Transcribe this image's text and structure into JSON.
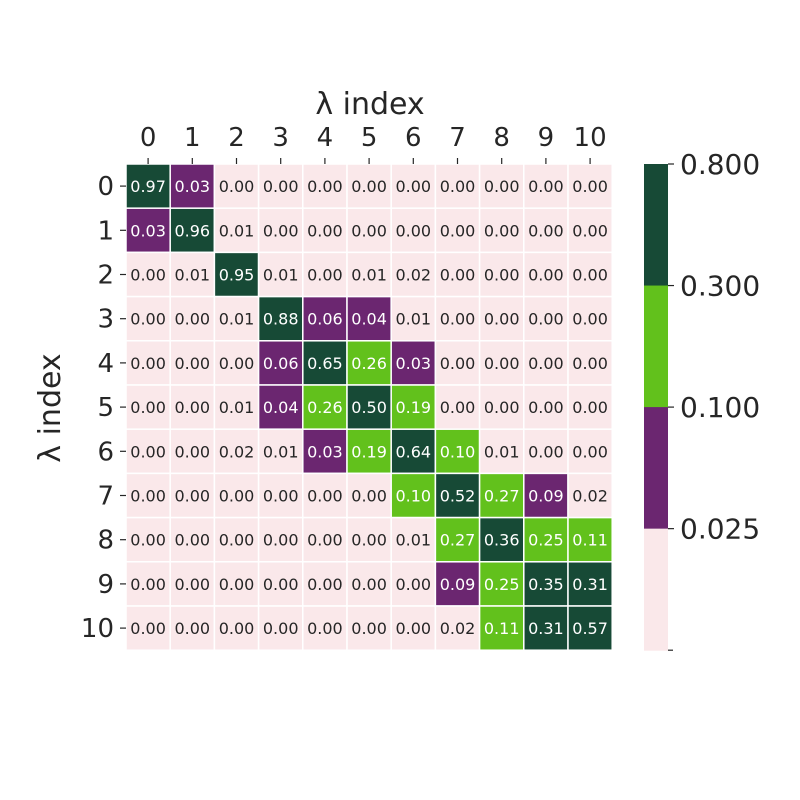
{
  "chart_data": {
    "type": "heatmap",
    "xlabel": "λ index",
    "ylabel": "λ index",
    "x_ticks": [
      "0",
      "1",
      "2",
      "3",
      "4",
      "5",
      "6",
      "7",
      "8",
      "9",
      "10"
    ],
    "y_ticks": [
      "0",
      "1",
      "2",
      "3",
      "4",
      "5",
      "6",
      "7",
      "8",
      "9",
      "10"
    ],
    "matrix": [
      [
        "0.97",
        "0.03",
        "0.00",
        "0.00",
        "0.00",
        "0.00",
        "0.00",
        "0.00",
        "0.00",
        "0.00",
        "0.00"
      ],
      [
        "0.03",
        "0.96",
        "0.01",
        "0.00",
        "0.00",
        "0.00",
        "0.00",
        "0.00",
        "0.00",
        "0.00",
        "0.00"
      ],
      [
        "0.00",
        "0.01",
        "0.95",
        "0.01",
        "0.00",
        "0.01",
        "0.02",
        "0.00",
        "0.00",
        "0.00",
        "0.00"
      ],
      [
        "0.00",
        "0.00",
        "0.01",
        "0.88",
        "0.06",
        "0.04",
        "0.01",
        "0.00",
        "0.00",
        "0.00",
        "0.00"
      ],
      [
        "0.00",
        "0.00",
        "0.00",
        "0.06",
        "0.65",
        "0.26",
        "0.03",
        "0.00",
        "0.00",
        "0.00",
        "0.00"
      ],
      [
        "0.00",
        "0.00",
        "0.01",
        "0.04",
        "0.26",
        "0.50",
        "0.19",
        "0.00",
        "0.00",
        "0.00",
        "0.00"
      ],
      [
        "0.00",
        "0.00",
        "0.02",
        "0.01",
        "0.03",
        "0.19",
        "0.64",
        "0.10",
        "0.01",
        "0.00",
        "0.00"
      ],
      [
        "0.00",
        "0.00",
        "0.00",
        "0.00",
        "0.00",
        "0.00",
        "0.10",
        "0.52",
        "0.27",
        "0.09",
        "0.02"
      ],
      [
        "0.00",
        "0.00",
        "0.00",
        "0.00",
        "0.00",
        "0.00",
        "0.01",
        "0.27",
        "0.36",
        "0.25",
        "0.11"
      ],
      [
        "0.00",
        "0.00",
        "0.00",
        "0.00",
        "0.00",
        "0.00",
        "0.00",
        "0.09",
        "0.25",
        "0.35",
        "0.31"
      ],
      [
        "0.00",
        "0.00",
        "0.00",
        "0.00",
        "0.00",
        "0.00",
        "0.00",
        "0.02",
        "0.11",
        "0.31",
        "0.57"
      ]
    ],
    "thresholds": [
      0.025,
      0.1,
      0.3
    ],
    "bin_colors": [
      "#fae8ea",
      "#6b2670",
      "#62c11c",
      "#174a36"
    ],
    "colorbar": {
      "tick_labels": [
        "0.025",
        "0.100",
        "0.300",
        "0.800"
      ],
      "bins": 4
    },
    "grid": true,
    "legend": "colorbar-right"
  }
}
